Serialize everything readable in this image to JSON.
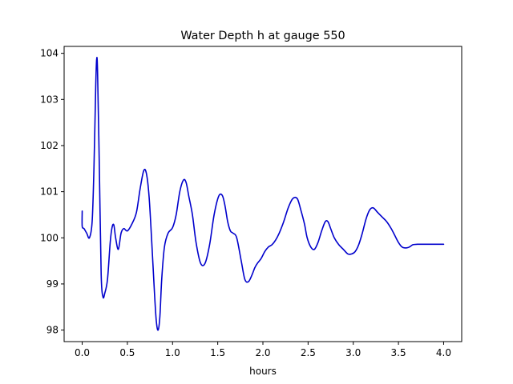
{
  "chart_data": {
    "type": "line",
    "title": "Water Depth h at gauge 550",
    "xlabel": "hours",
    "ylabel": "",
    "xlim": [
      -0.2,
      4.2
    ],
    "ylim": [
      97.75,
      104.15
    ],
    "x_ticks": [
      "0.0",
      "0.5",
      "1.0",
      "1.5",
      "2.0",
      "2.5",
      "3.0",
      "3.5",
      "4.0"
    ],
    "x_tick_values": [
      0.0,
      0.5,
      1.0,
      1.5,
      2.0,
      2.5,
      3.0,
      3.5,
      4.0
    ],
    "y_ticks": [
      "98",
      "99",
      "100",
      "101",
      "102",
      "103",
      "104"
    ],
    "y_tick_values": [
      98,
      99,
      100,
      101,
      102,
      103,
      104
    ],
    "grid": false,
    "series": [
      {
        "color": "#0000cc",
        "x": [
          0.0,
          0.0,
          0.02,
          0.05,
          0.08,
          0.11,
          0.13,
          0.15,
          0.16,
          0.17,
          0.19,
          0.21,
          0.23,
          0.25,
          0.28,
          0.31,
          0.33,
          0.35,
          0.37,
          0.4,
          0.43,
          0.46,
          0.5,
          0.55,
          0.6,
          0.64,
          0.68,
          0.71,
          0.74,
          0.77,
          0.8,
          0.82,
          0.84,
          0.86,
          0.88,
          0.91,
          0.95,
          1.0,
          1.04,
          1.08,
          1.12,
          1.15,
          1.18,
          1.22,
          1.26,
          1.31,
          1.36,
          1.41,
          1.46,
          1.51,
          1.55,
          1.58,
          1.61,
          1.64,
          1.67,
          1.71,
          1.76,
          1.8,
          1.84,
          1.88,
          1.91,
          1.94,
          1.98,
          2.02,
          2.06,
          2.1,
          2.14,
          2.18,
          2.23,
          2.28,
          2.33,
          2.38,
          2.42,
          2.46,
          2.49,
          2.53,
          2.57,
          2.61,
          2.65,
          2.69,
          2.72,
          2.75,
          2.79,
          2.84,
          2.89,
          2.94,
          2.98,
          3.02,
          3.06,
          3.1,
          3.14,
          3.18,
          3.22,
          3.27,
          3.32,
          3.37,
          3.42,
          3.46,
          3.5,
          3.54,
          3.58,
          3.62,
          3.66,
          3.71,
          3.76,
          3.81,
          3.86,
          3.91,
          3.96,
          4.0
        ],
        "y": [
          100.58,
          100.25,
          100.2,
          100.1,
          100.0,
          100.35,
          101.5,
          103.3,
          103.87,
          103.6,
          101.5,
          99.2,
          98.72,
          98.8,
          99.1,
          99.9,
          100.22,
          100.28,
          100.0,
          99.75,
          100.1,
          100.2,
          100.15,
          100.3,
          100.55,
          101.05,
          101.45,
          101.4,
          100.9,
          99.9,
          98.8,
          98.2,
          98.0,
          98.3,
          99.1,
          99.8,
          100.1,
          100.22,
          100.5,
          101.0,
          101.25,
          101.2,
          100.9,
          100.5,
          99.9,
          99.45,
          99.45,
          99.85,
          100.5,
          100.9,
          100.92,
          100.7,
          100.35,
          100.15,
          100.1,
          100.0,
          99.5,
          99.1,
          99.05,
          99.2,
          99.35,
          99.45,
          99.55,
          99.7,
          99.8,
          99.85,
          99.95,
          100.1,
          100.35,
          100.65,
          100.85,
          100.85,
          100.6,
          100.3,
          100.0,
          99.8,
          99.75,
          99.9,
          100.15,
          100.35,
          100.35,
          100.2,
          100.0,
          99.85,
          99.75,
          99.65,
          99.65,
          99.7,
          99.85,
          100.1,
          100.4,
          100.6,
          100.65,
          100.55,
          100.45,
          100.35,
          100.2,
          100.05,
          99.9,
          99.8,
          99.78,
          99.8,
          99.85,
          99.86,
          99.86,
          99.86,
          99.86,
          99.86,
          99.86,
          99.86
        ]
      }
    ]
  }
}
